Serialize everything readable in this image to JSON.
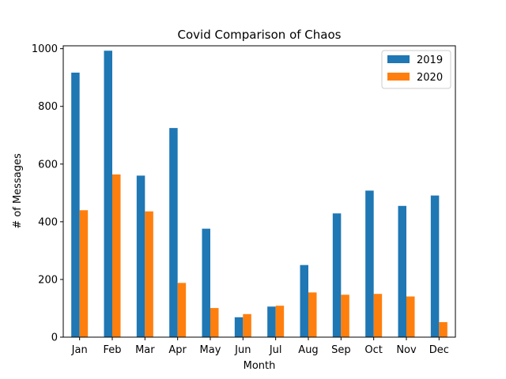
{
  "chart_data": {
    "type": "bar",
    "title": "Covid Comparison of Chaos",
    "xlabel": "Month",
    "ylabel": "# of Messages",
    "categories": [
      "Jan",
      "Feb",
      "Mar",
      "Apr",
      "May",
      "Jun",
      "Jul",
      "Aug",
      "Sep",
      "Oct",
      "Nov",
      "Dec"
    ],
    "series": [
      {
        "name": "2019",
        "color": "#1f77b4",
        "values": [
          917,
          993,
          560,
          725,
          376,
          69,
          106,
          250,
          429,
          508,
          455,
          491
        ]
      },
      {
        "name": "2020",
        "color": "#ff7f0e",
        "values": [
          440,
          564,
          436,
          188,
          101,
          80,
          109,
          155,
          147,
          150,
          141,
          52
        ]
      }
    ],
    "ylim": [
      0,
      1010
    ],
    "yticks": [
      0,
      200,
      400,
      600,
      800,
      1000
    ],
    "grid": false,
    "legend_position": "top-right"
  }
}
